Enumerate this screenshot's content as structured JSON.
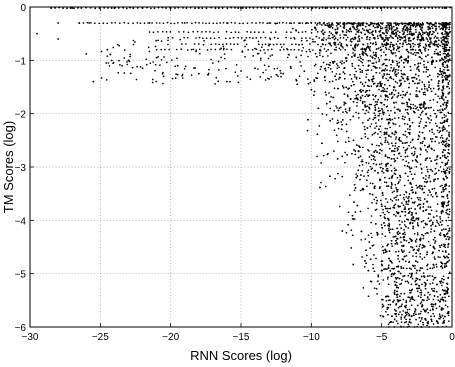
{
  "chart_data": {
    "type": "scatter",
    "title": "",
    "xlabel": "RNN Scores (log)",
    "ylabel": "TM Scores (log)",
    "xlim": [
      -30,
      0
    ],
    "ylim": [
      -6,
      0
    ],
    "xticks": [
      -30,
      -25,
      -20,
      -15,
      -10,
      -5,
      0
    ],
    "yticks": [
      -6,
      -5,
      -4,
      -3,
      -2,
      -1,
      0
    ],
    "xtick_labels": [
      "−30",
      "−25",
      "−20",
      "−15",
      "−10",
      "−5",
      "0"
    ],
    "ytick_labels": [
      "−6",
      "−5",
      "−4",
      "−3",
      "−2",
      "−1",
      "0"
    ],
    "grid": true,
    "legend": "none",
    "marker_color": "#000000",
    "series": [
      {
        "description_points": "Dense point cloud; TM values quantized in bands near 0, spreading down to −6 for RNN scores between −10 and 0",
        "points": [
          [
            -28.5,
            -0.02
          ],
          [
            -27.0,
            -0.02
          ],
          [
            -24.0,
            -0.02
          ],
          [
            -22.0,
            -0.02
          ],
          [
            -20.0,
            -0.02
          ],
          [
            -18.0,
            -0.02
          ],
          [
            -15.0,
            -0.02
          ],
          [
            -12.0,
            -0.02
          ],
          [
            -9.0,
            -0.02
          ],
          [
            -6.0,
            -0.02
          ],
          [
            -3.0,
            -0.02
          ],
          [
            -28.0,
            -0.3
          ],
          [
            -26.5,
            -0.3
          ],
          [
            -25.8,
            -0.3
          ],
          [
            -21.5,
            -0.3
          ],
          [
            -19.0,
            -0.3
          ],
          [
            -16.0,
            -0.3
          ],
          [
            -13.0,
            -0.3
          ],
          [
            -10.0,
            -0.3
          ],
          [
            -7.0,
            -0.3
          ],
          [
            -4.0,
            -0.3
          ],
          [
            -1.5,
            -0.3
          ],
          [
            -29.5,
            -0.5
          ],
          [
            -26.0,
            -0.88
          ],
          [
            -25.5,
            -1.4
          ],
          [
            -28.0,
            -0.6
          ],
          [
            -24.5,
            -0.8
          ],
          [
            -23.0,
            -1.0
          ],
          [
            -22.0,
            -1.15
          ],
          [
            -21.0,
            -0.95
          ],
          [
            -20.5,
            -1.3
          ],
          [
            -19.5,
            -1.1
          ],
          [
            -18.0,
            -1.25
          ],
          [
            -17.0,
            -1.05
          ],
          [
            -16.0,
            -1.4
          ],
          [
            -15.0,
            -1.2
          ],
          [
            -14.0,
            -1.15
          ],
          [
            -13.0,
            -1.35
          ],
          [
            -12.0,
            -1.25
          ],
          [
            -11.0,
            -1.45
          ],
          [
            -10.0,
            -1.55
          ],
          [
            -9.0,
            -1.6
          ],
          [
            -8.0,
            -1.9
          ],
          [
            -7.5,
            -2.2
          ],
          [
            -7.0,
            -2.5
          ],
          [
            -6.5,
            -2.8
          ],
          [
            -6.0,
            -3.1
          ],
          [
            -5.5,
            -3.4
          ],
          [
            -5.0,
            -3.7
          ],
          [
            -4.5,
            -4.0
          ],
          [
            -4.0,
            -4.3
          ],
          [
            -3.5,
            -4.6
          ],
          [
            -3.0,
            -4.9
          ],
          [
            -2.5,
            -5.2
          ],
          [
            -2.0,
            -5.5
          ],
          [
            -1.5,
            -5.8
          ],
          [
            -1.0,
            -6.0
          ],
          [
            -2.2,
            -6.0
          ],
          [
            -3.1,
            -5.95
          ],
          [
            -4.2,
            -5.0
          ],
          [
            -5.6,
            -4.9
          ],
          [
            -6.8,
            -3.2
          ],
          [
            -7.8,
            -2.8
          ],
          [
            -8.5,
            -2.1
          ],
          [
            -9.5,
            -1.9
          ],
          [
            -0.5,
            -0.02
          ],
          [
            -0.3,
            -0.5
          ],
          [
            -0.8,
            -1.0
          ],
          [
            -1.2,
            -2.0
          ],
          [
            -1.8,
            -3.0
          ],
          [
            -2.8,
            -4.0
          ],
          [
            -3.8,
            -5.5
          ]
        ]
      }
    ]
  }
}
